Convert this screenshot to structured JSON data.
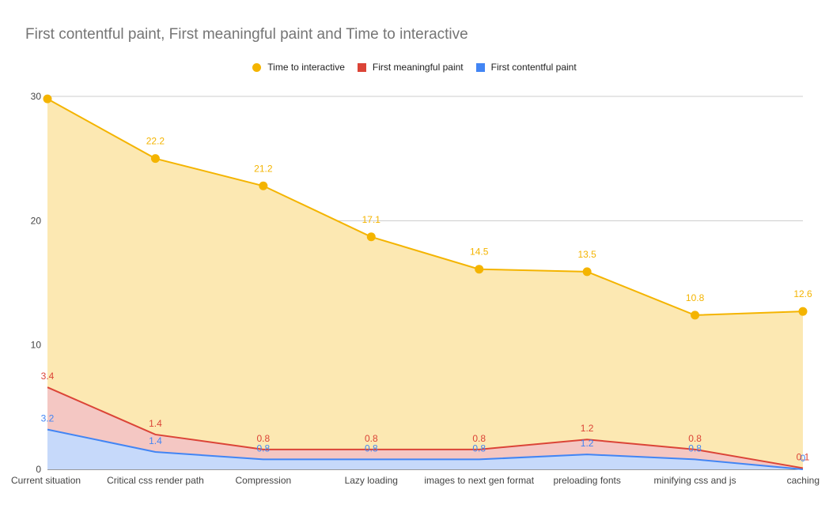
{
  "title": "First contentful paint, First meaningful paint and Time to interactive",
  "legend": {
    "items": [
      {
        "label": "Time to interactive",
        "color": "#f4b400",
        "shape": "circle"
      },
      {
        "label": "First meaningful paint",
        "color": "#db4437",
        "shape": "square"
      },
      {
        "label": "First contentful paint",
        "color": "#4285f4",
        "shape": "square"
      }
    ]
  },
  "chart_data": {
    "type": "area",
    "stacked": true,
    "categories": [
      "Current situation",
      "Critical css render path",
      "Compression",
      "Lazy loading",
      "images to next gen format",
      "preloading fonts",
      "minifying css and js",
      "caching"
    ],
    "series": [
      {
        "name": "First contentful paint",
        "color": "#4285f4",
        "fill": "#c6d9fa",
        "values": [
          3.2,
          1.4,
          0.8,
          0.8,
          0.8,
          1.2,
          0.8,
          0
        ],
        "labels": [
          "3.2",
          "1.4",
          "0.8",
          "0.8",
          "0.8",
          "1.2",
          "0.8",
          "0"
        ]
      },
      {
        "name": "First meaningful paint",
        "color": "#db4437",
        "fill": "#f4c7c3",
        "values": [
          3.4,
          1.4,
          0.8,
          0.8,
          0.8,
          1.2,
          0.8,
          0.1
        ],
        "labels": [
          "3.4",
          "1.4",
          "0.8",
          "0.8",
          "0.8",
          "1.2",
          "0.8",
          "0.1"
        ]
      },
      {
        "name": "Time to interactive",
        "color": "#f4b400",
        "fill": "#fce8b2",
        "values": [
          23.2,
          22.2,
          21.2,
          17.1,
          14.5,
          13.5,
          10.8,
          12.6
        ],
        "labels": [
          "",
          "22.2",
          "21.2",
          "17.1",
          "14.5",
          "13.5",
          "10.8",
          "12.6"
        ],
        "markers": true
      }
    ],
    "yticks": [
      0,
      10,
      20,
      30
    ],
    "ylim": [
      0,
      30
    ],
    "grid": true,
    "legend_position": "top"
  }
}
